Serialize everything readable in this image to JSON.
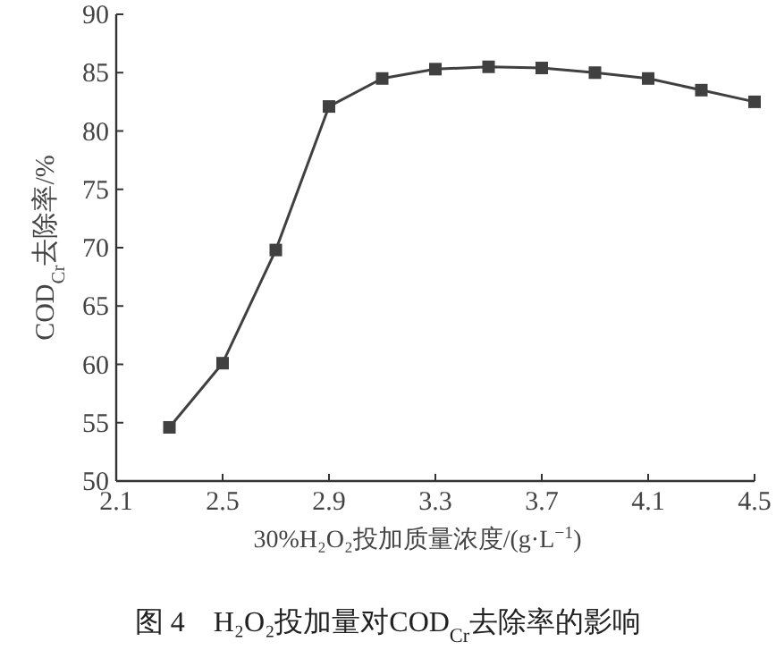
{
  "chart_data": {
    "type": "line",
    "xlabel": "30%H₂O₂投加质量浓度/(g·L$^{−1}$)",
    "ylabel": "COD$_{Cr}$去除率/%",
    "annotations": [
      "图 4　H₂O₂投加量对COD$_{Cr}$去除率的影响"
    ],
    "x": [
      2.3,
      2.5,
      2.7,
      2.9,
      3.1,
      3.3,
      3.5,
      3.7,
      3.9,
      4.1,
      4.3,
      4.5
    ],
    "series": [
      {
        "color": "#404040",
        "values": [
          54.6,
          60.1,
          69.8,
          82.1,
          84.5,
          85.3,
          85.5,
          85.4,
          85.0,
          84.5,
          83.5,
          82.5
        ]
      }
    ],
    "xlim": [
      2.1,
      4.5
    ],
    "xticks": [
      2.1,
      2.5,
      2.9,
      3.3,
      3.7,
      4.1,
      4.5
    ],
    "ylim": [
      50,
      90
    ],
    "yticks": [
      50,
      55,
      60,
      65,
      70,
      75,
      80,
      85,
      90
    ],
    "marker": "square",
    "line_style": "solid"
  }
}
